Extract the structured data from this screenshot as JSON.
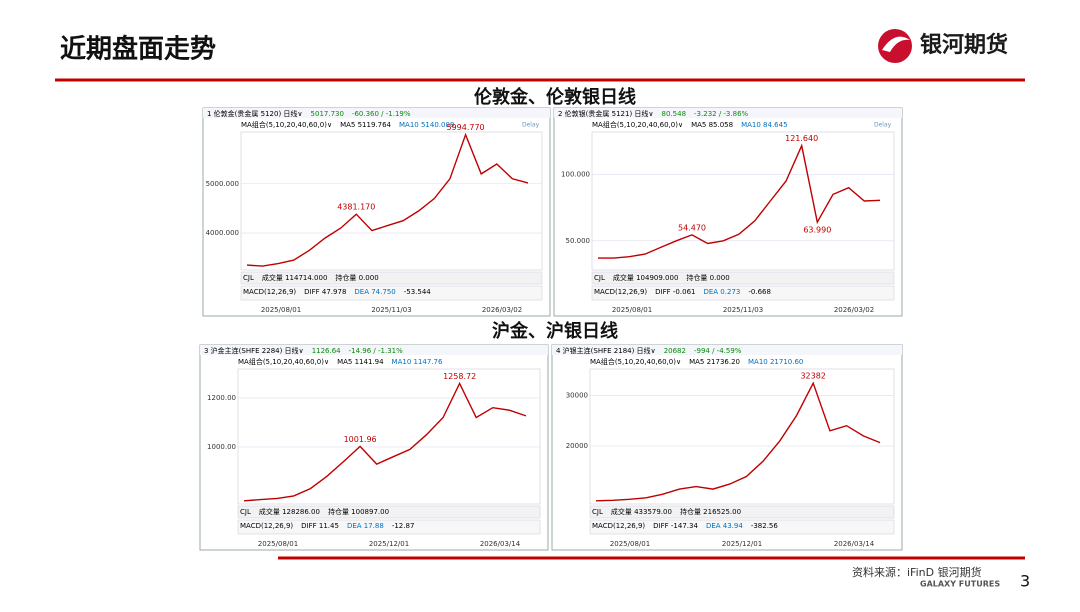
{
  "header": {
    "title": "近期盘面走势",
    "logo": "银河期货"
  },
  "sections": [
    "伦敦金、伦敦银日线",
    "沪金、沪银日线"
  ],
  "panels": [
    {
      "type": "line",
      "info": [
        "1  伦敦金(贵金属 5120)  日线∨",
        "5017.730",
        "-60.360 / -1.19%"
      ],
      "ma": [
        "MA组合(5,10,20,40,60,0)∨",
        "MA5 5119.764",
        "MA10 5140.008"
      ],
      "delay": "Delay",
      "ylim": [
        3250,
        6050
      ],
      "yticks": [
        {
          "value": 4000,
          "label": "4000.000"
        },
        {
          "value": 5000,
          "label": "5000.000"
        }
      ],
      "color": "#c00000",
      "values": [
        3350,
        3330,
        3380,
        3450,
        3650,
        3900,
        4100,
        4381.17,
        4050,
        4150,
        4250,
        4450,
        4700,
        5100,
        5994.77,
        5200,
        5400,
        5100,
        5017.73
      ],
      "annotations": [
        {
          "value": 4381.17,
          "label": "4381.170"
        },
        {
          "value": 5994.77,
          "label": "5994.770"
        }
      ],
      "cjl": [
        "CJL",
        "成交量 114714.000",
        "持仓量 0.000"
      ],
      "macd": [
        "MACD(12,26,9)",
        "DIFF 47.978",
        "DEA 74.750",
        "-53.544"
      ],
      "xlabels": [
        "2025/08/01",
        "2025/11/03",
        "2026/03/02"
      ]
    },
    {
      "type": "line",
      "info": [
        "2  伦敦银(贵金属 5121)  日线∨",
        "80.548",
        "-3.232 / -3.86%"
      ],
      "ma": [
        "MA组合(5,10,20,40,60,0)∨",
        "MA5 85.058",
        "MA10 84.645"
      ],
      "delay": "Delay",
      "ylim": [
        28,
        132
      ],
      "yticks": [
        {
          "value": 50,
          "label": "50.000"
        },
        {
          "value": 100,
          "label": "100.000"
        }
      ],
      "color": "#c00000",
      "values": [
        37,
        37,
        38,
        40,
        45,
        50,
        54.47,
        48,
        50,
        55,
        65,
        80,
        95,
        121.64,
        63.99,
        85,
        90,
        80,
        80.548
      ],
      "annotations": [
        {
          "value": 54.47,
          "label": "54.470"
        },
        {
          "value": 121.64,
          "label": "121.640"
        },
        {
          "value": 63.99,
          "label": "63.990"
        }
      ],
      "cjl": [
        "CJL",
        "成交量 104909.000",
        "持仓量 0.000"
      ],
      "macd": [
        "MACD(12,26,9)",
        "DIFF -0.061",
        "DEA 0.273",
        "-0.668"
      ],
      "xlabels": [
        "2025/08/01",
        "2025/11/03",
        "2026/03/02"
      ]
    },
    {
      "type": "line",
      "info": [
        "3  沪金主连(SHFE 2284)  日线∨",
        "1126.64",
        "-14.96 / -1.31%"
      ],
      "ma": [
        "MA组合(5,10,20,40,60,0)∨",
        "MA5 1141.94",
        "MA10 1147.76"
      ],
      "ylim": [
        767,
        1318
      ],
      "yticks": [
        {
          "value": 1000,
          "label": "1000.00"
        },
        {
          "value": 1200,
          "label": "1200.00"
        }
      ],
      "color": "#c00000",
      "values": [
        780,
        785,
        790,
        800,
        830,
        880,
        940,
        1001.96,
        930,
        960,
        990,
        1050,
        1120,
        1258.72,
        1120,
        1160,
        1150,
        1126.64
      ],
      "annotations": [
        {
          "value": 1001.96,
          "label": "1001.96"
        },
        {
          "value": 1258.72,
          "label": "1258.72"
        }
      ],
      "cjl": [
        "CJL",
        "成交量 128286.00",
        "持仓量 100897.00"
      ],
      "macd": [
        "MACD(12,26,9)",
        "DIFF 11.45",
        "DEA 17.88",
        "-12.87"
      ],
      "xlabels": [
        "2025/08/01",
        "2025/12/01",
        "2026/03/14"
      ]
    },
    {
      "type": "line",
      "info": [
        "4  沪银主连(SHFE 2184)  日线∨",
        "20682",
        "-994 / -4.59%"
      ],
      "ma": [
        "MA组合(5,10,20,40,60,0)∨",
        "MA5 21736.20",
        "MA10 21710.60"
      ],
      "ylim": [
        8570,
        35180
      ],
      "yticks": [
        20000,
        30000
      ],
      "color": "#c00000",
      "values": [
        9200,
        9300,
        9500,
        9800,
        10500,
        11500,
        12000,
        11500,
        12500,
        14000,
        17000,
        21000,
        26000,
        32382,
        23000,
        24000,
        22000,
        20682
      ],
      "annotations": [
        {
          "value": 32382,
          "label": "32382"
        }
      ],
      "cjl": [
        "CJL",
        "成交量 433579.00",
        "持仓量 216525.00"
      ],
      "macd": [
        "MACD(12,26,9)",
        "DIFF -147.34",
        "DEA 43.94",
        "-382.56"
      ],
      "xlabels": [
        "2025/08/01",
        "2025/12/01",
        "2026/03/14"
      ]
    }
  ],
  "footer": {
    "source": "资料来源：iFinD 银河期货",
    "brand": "GALAXY FUTURES",
    "page": "3"
  }
}
